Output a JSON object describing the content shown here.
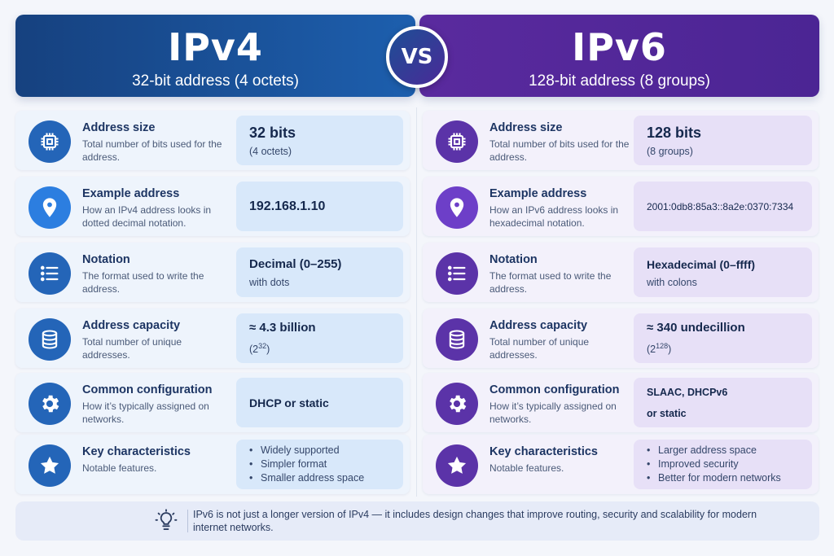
{
  "ipv4": {
    "title": "IPv4",
    "subtitle": "32-bit address (4 octets)",
    "rows": [
      {
        "label": "Address size",
        "desc": "Total number of bits used for the address.",
        "value": "32 bits",
        "value_sub": "(4 octets)",
        "icon": "chip-icon"
      },
      {
        "label": "Example address",
        "desc": "How an IPv4 address looks in dotted decimal notation.",
        "value": "192.168.1.10",
        "value_sub": "",
        "icon": "location-pin-icon"
      },
      {
        "label": "Notation",
        "desc": "The format used to write the address.",
        "value": "Decimal (0–255)",
        "value_sub": "with dots",
        "icon": "list-icon"
      },
      {
        "label": "Address capacity",
        "desc": "Total number of unique addresses.",
        "value": "≈ 4.3 billion",
        "value_sub_base": "(2",
        "value_sub_exp": "32",
        "value_sub_end": ")",
        "icon": "database-icon"
      },
      {
        "label": "Common configuration",
        "desc": "How it’s typically assigned on networks.",
        "value": "DHCP or static",
        "value_sub": "",
        "icon": "gear-icon"
      },
      {
        "label": "Key characteristics",
        "desc": "Notable features.",
        "bullets": [
          "Widely supported",
          "Simpler format",
          "Smaller address space"
        ],
        "icon": "star-icon"
      }
    ]
  },
  "vs_label": "VS",
  "ipv6": {
    "title": "IPv6",
    "subtitle": "128-bit address (8 groups)",
    "rows": [
      {
        "label": "Address size",
        "desc": "Total number of bits used for the address.",
        "value": "128 bits",
        "value_sub": "(8 groups)",
        "icon": "chip-icon"
      },
      {
        "label": "Example address",
        "desc": "How an IPv6 address looks in hexadecimal notation.",
        "value": "2001:0db8:85a3::8a2e:0370:7334",
        "value_sub": "",
        "icon": "location-pin-icon"
      },
      {
        "label": "Notation",
        "desc": "The format used to write the address.",
        "value": "Hexadecimal (0–ffff)",
        "value_sub": "with colons",
        "icon": "list-icon"
      },
      {
        "label": "Address capacity",
        "desc": "Total number of unique addresses.",
        "value": "≈ 340 undecillion",
        "value_sub_base": "(2",
        "value_sub_exp": "128",
        "value_sub_end": ")",
        "icon": "database-icon"
      },
      {
        "label": "Common configuration",
        "desc": "How it’s typically assigned on networks.",
        "value": "SLAAC, DHCPv6",
        "value_line2": "or static",
        "icon": "gear-icon"
      },
      {
        "label": "Key characteristics",
        "desc": "Notable features.",
        "bullets": [
          "Larger address space",
          "Improved security",
          "Better for modern networks"
        ],
        "icon": "star-icon"
      }
    ]
  },
  "footer": {
    "icon": "lightbulb-icon",
    "text": "IPv6 is not just a longer version of IPv4 — it includes design changes that improve routing, security and scalability for modern internet networks."
  },
  "colors": {
    "ipv4_accent": "#1d5fae",
    "ipv6_accent": "#5a2a9e"
  }
}
